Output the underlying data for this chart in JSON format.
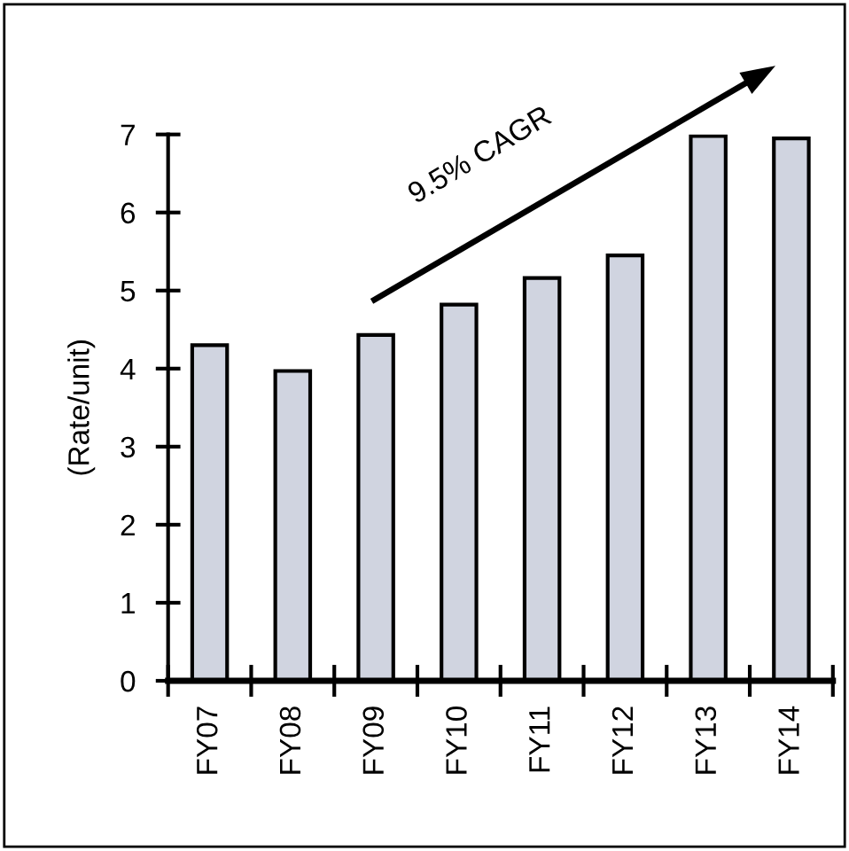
{
  "chart_data": {
    "type": "bar",
    "ylabel": "(Rate/unit)",
    "categories": [
      "FY07",
      "FY08",
      "FY09",
      "FY10",
      "FY11",
      "FY12",
      "FY13",
      "FY14"
    ],
    "values": [
      4.3,
      3.97,
      4.43,
      4.82,
      5.16,
      5.45,
      6.98,
      6.95
    ],
    "color": "#d0d4e0",
    "ylim": [
      0,
      7
    ],
    "yticks": [
      0,
      1,
      2,
      3,
      4,
      5,
      6,
      7
    ],
    "annotations": [
      "9.5% CAGR"
    ],
    "grid": false,
    "legend": false
  }
}
